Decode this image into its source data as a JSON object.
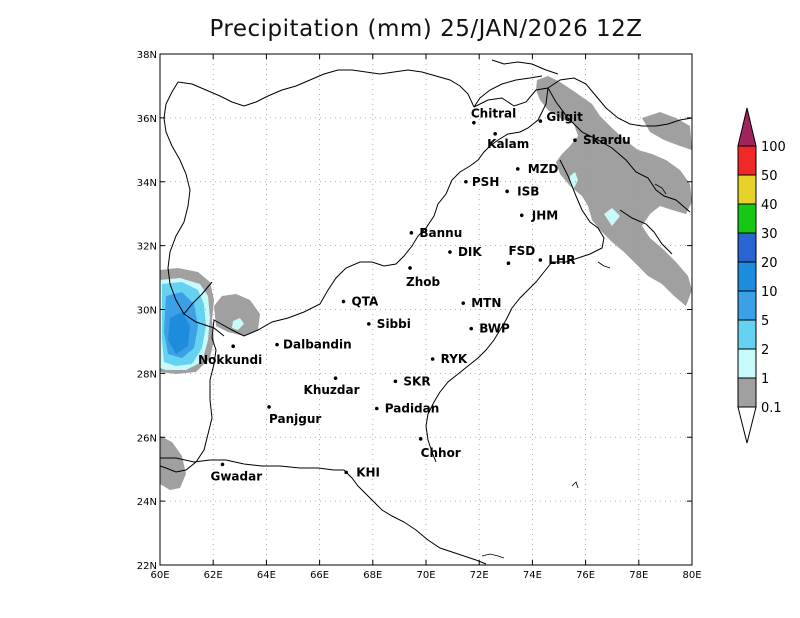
{
  "title": "Precipitation (mm) 25/JAN/2026 12Z",
  "map": {
    "lon_range": [
      60,
      80
    ],
    "lat_range": [
      22,
      38
    ],
    "x_ticks": [
      {
        "lon": 60,
        "label": "60E"
      },
      {
        "lon": 62,
        "label": "62E"
      },
      {
        "lon": 64,
        "label": "64E"
      },
      {
        "lon": 66,
        "label": "66E"
      },
      {
        "lon": 68,
        "label": "68E"
      },
      {
        "lon": 70,
        "label": "70E"
      },
      {
        "lon": 72,
        "label": "72E"
      },
      {
        "lon": 74,
        "label": "74E"
      },
      {
        "lon": 76,
        "label": "76E"
      },
      {
        "lon": 78,
        "label": "78E"
      },
      {
        "lon": 80,
        "label": "80E"
      }
    ],
    "y_ticks": [
      {
        "lat": 22,
        "label": "22N"
      },
      {
        "lat": 24,
        "label": "24N"
      },
      {
        "lat": 26,
        "label": "26N"
      },
      {
        "lat": 28,
        "label": "28N"
      },
      {
        "lat": 30,
        "label": "30N"
      },
      {
        "lat": 32,
        "label": "32N"
      },
      {
        "lat": 34,
        "label": "34N"
      },
      {
        "lat": 36,
        "label": "36N"
      },
      {
        "lat": 38,
        "label": "38N"
      }
    ],
    "grid": "dotted"
  },
  "cities": [
    {
      "name": "Chitral",
      "lon": 71.8,
      "lat": 35.85
    },
    {
      "name": "Gilgit",
      "lon": 74.3,
      "lat": 35.9
    },
    {
      "name": "Kalam",
      "lon": 72.6,
      "lat": 35.5
    },
    {
      "name": "Skardu",
      "lon": 75.6,
      "lat": 35.3
    },
    {
      "name": "MZD",
      "lon": 73.45,
      "lat": 34.4
    },
    {
      "name": "PSH",
      "lon": 71.5,
      "lat": 34.0
    },
    {
      "name": "ISB",
      "lon": 73.05,
      "lat": 33.7
    },
    {
      "name": "JHM",
      "lon": 73.6,
      "lat": 32.95
    },
    {
      "name": "Bannu",
      "lon": 69.45,
      "lat": 32.4
    },
    {
      "name": "DIK",
      "lon": 70.9,
      "lat": 31.8
    },
    {
      "name": "FSD",
      "lon": 73.1,
      "lat": 31.45
    },
    {
      "name": "LHR",
      "lon": 74.3,
      "lat": 31.55
    },
    {
      "name": "Zhob",
      "lon": 69.4,
      "lat": 31.3
    },
    {
      "name": "QTA",
      "lon": 66.9,
      "lat": 30.25
    },
    {
      "name": "MTN",
      "lon": 71.4,
      "lat": 30.2
    },
    {
      "name": "Sibbi",
      "lon": 67.85,
      "lat": 29.55
    },
    {
      "name": "BWP",
      "lon": 71.7,
      "lat": 29.4
    },
    {
      "name": "Nokkundi",
      "lon": 62.75,
      "lat": 28.85
    },
    {
      "name": "Dalbandin",
      "lon": 64.4,
      "lat": 28.9
    },
    {
      "name": "RYK",
      "lon": 70.25,
      "lat": 28.45
    },
    {
      "name": "Khuzdar",
      "lon": 66.6,
      "lat": 27.85
    },
    {
      "name": "SKR",
      "lon": 68.85,
      "lat": 27.75
    },
    {
      "name": "Panjgur",
      "lon": 64.1,
      "lat": 26.95
    },
    {
      "name": "Padidan",
      "lon": 68.15,
      "lat": 26.9
    },
    {
      "name": "Chhor",
      "lon": 69.8,
      "lat": 25.95
    },
    {
      "name": "Gwadar",
      "lon": 62.35,
      "lat": 25.15
    },
    {
      "name": "KHI",
      "lon": 67.0,
      "lat": 24.9
    }
  ],
  "legend": {
    "levels": [
      "100",
      "50",
      "40",
      "30",
      "20",
      "10",
      "5",
      "2",
      "1",
      "0.1"
    ],
    "colors": {
      "top_arrow": "#a0235f",
      "100": "#f02828",
      "50": "#e6d228",
      "40": "#14c814",
      "30": "#2864d2",
      "20": "#1e8cdc",
      "10": "#3ca0e6",
      "5": "#64d2f0",
      "2": "#c8fafa",
      "1": "#a0a0a0",
      "bottom_arrow": "#ffffff"
    }
  },
  "precip_colors": {
    "light": "#a0a0a0",
    "very_light_blue": "#c8fafa",
    "cyan": "#64d2f0",
    "mid_blue": "#3ca0e6",
    "blue": "#1e8cdc"
  }
}
